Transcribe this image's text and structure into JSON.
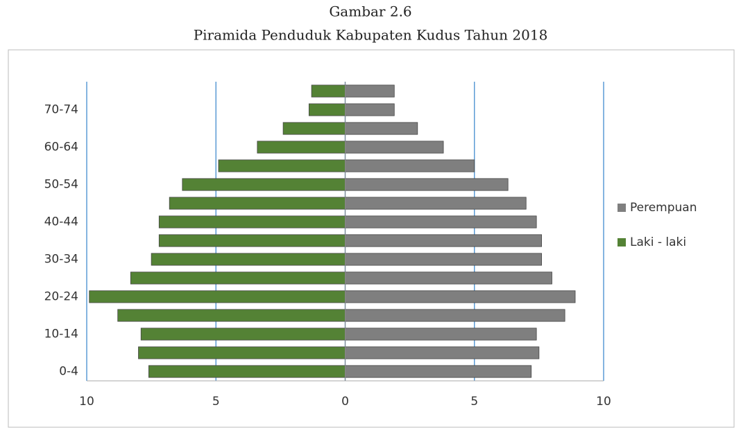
{
  "chart_data": {
    "type": "pyramid",
    "title": "Gambar 2.6",
    "subtitle": "Piramida Penduduk Kabupaten  Kudus Tahun 2018",
    "categories": [
      "0-4",
      null,
      "10-14",
      null,
      "20-24",
      null,
      "30-34",
      null,
      "40-44",
      null,
      "50-54",
      null,
      "60-64",
      null,
      "70-74",
      null
    ],
    "series": [
      {
        "name": "Perempuan",
        "color": "#7f7f7f",
        "values": [
          7.2,
          7.5,
          7.4,
          8.5,
          8.9,
          8.0,
          7.6,
          7.6,
          7.4,
          7.0,
          6.3,
          5.0,
          3.8,
          2.8,
          1.9,
          1.9
        ]
      },
      {
        "name": "Laki - laki",
        "color": "#548235",
        "values": [
          -7.6,
          -8.0,
          -7.9,
          -8.8,
          -9.9,
          -8.3,
          -7.5,
          -7.2,
          -7.2,
          -6.8,
          -6.3,
          -4.9,
          -3.4,
          -2.4,
          -1.4,
          -1.3
        ]
      }
    ],
    "xlim": [
      -10,
      10
    ],
    "xticks": [
      {
        "value": -10,
        "label": "10"
      },
      {
        "value": -5,
        "label": "5"
      },
      0,
      5,
      10
    ],
    "grid": true,
    "legend": "right"
  }
}
